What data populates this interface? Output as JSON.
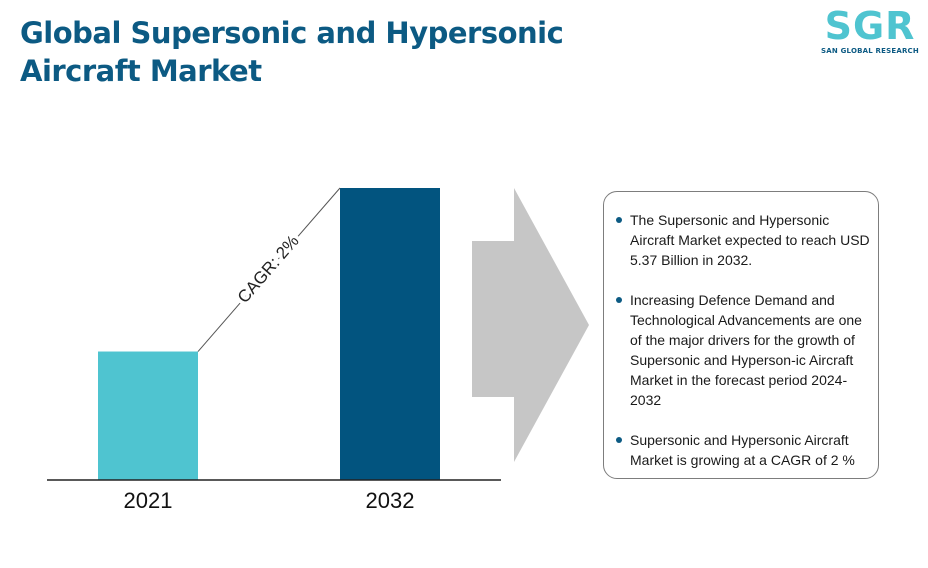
{
  "header": {
    "title_line1": "Global Supersonic and Hypersonic",
    "title_line2": "Aircraft Market"
  },
  "logo": {
    "mark": "SGR",
    "subtitle": "SAN GLOBAL RESEARCH"
  },
  "chart_data": {
    "type": "bar",
    "categories": [
      "2021",
      "2032"
    ],
    "values": [
      44,
      100
    ],
    "title": "",
    "xlabel": "",
    "ylabel": "",
    "ylim": [
      0,
      100
    ],
    "grid": false,
    "colors": [
      "#4fc4d0",
      "#02547f"
    ],
    "annotation": "CAGR: 2%"
  },
  "infobox": {
    "bullets": [
      "The Supersonic and Hypersonic Aircraft Market expected to reach USD 5.37 Billion in 2032.",
      "Increasing Defence Demand and Technological Advancements are one of the major drivers for the growth of Supersonic and Hyperson-ic Aircraft Market in the forecast period 2024-2032",
      "Supersonic and Hypersonic Aircraft Market is growing at a CAGR of 2 %"
    ]
  },
  "arrow_color": "#c6c6c6"
}
